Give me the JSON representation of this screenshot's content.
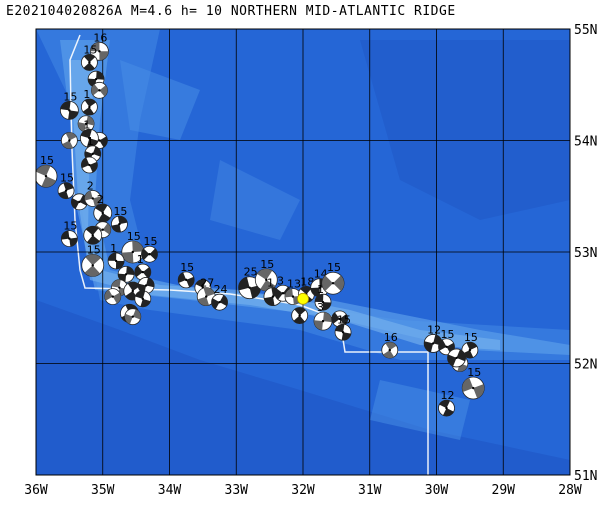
{
  "title": "E202104020826A M=4.6 h= 10 NORTHERN MID-ATLANTIC RIDGE",
  "axes": {
    "x_ticks": [
      "36W",
      "35W",
      "34W",
      "33W",
      "32W",
      "31W",
      "30W",
      "29W",
      "28W"
    ],
    "y_ticks": [
      "55N",
      "54N",
      "53N",
      "52N",
      "51N"
    ],
    "lon_range": [
      -36,
      -28
    ],
    "lat_range": [
      51,
      55
    ]
  },
  "colors": {
    "ocean": "#2566d6",
    "deep": "#1f55c4",
    "ridge": "#4a8fe6",
    "shallow": "#78b4ee",
    "grid": "#000000",
    "plate_boundary": "#ffffff",
    "event_marker": "#ffff00"
  },
  "event": {
    "lon": -32.0,
    "lat": 52.58
  },
  "mechanisms": [
    {
      "lon": -35.05,
      "lat": 54.8,
      "label": "16"
    },
    {
      "lon": -35.2,
      "lat": 54.7,
      "label": "15"
    },
    {
      "lon": -35.1,
      "lat": 54.55,
      "label": ""
    },
    {
      "lon": -35.05,
      "lat": 54.45,
      "label": ""
    },
    {
      "lon": -35.5,
      "lat": 54.27,
      "label": "15"
    },
    {
      "lon": -35.2,
      "lat": 54.3,
      "label": "1"
    },
    {
      "lon": -35.25,
      "lat": 54.15,
      "label": ""
    },
    {
      "lon": -35.05,
      "lat": 54.0,
      "label": ""
    },
    {
      "lon": -35.2,
      "lat": 54.02,
      "label": "1"
    },
    {
      "lon": -35.5,
      "lat": 54.0,
      "label": ""
    },
    {
      "lon": -35.15,
      "lat": 53.88,
      "label": "1"
    },
    {
      "lon": -35.2,
      "lat": 53.78,
      "label": ""
    },
    {
      "lon": -35.85,
      "lat": 53.68,
      "label": "15"
    },
    {
      "lon": -35.55,
      "lat": 53.55,
      "label": "15"
    },
    {
      "lon": -35.35,
      "lat": 53.45,
      "label": ""
    },
    {
      "lon": -35.15,
      "lat": 53.48,
      "label": "2"
    },
    {
      "lon": -35.0,
      "lat": 53.35,
      "label": "2"
    },
    {
      "lon": -34.75,
      "lat": 53.25,
      "label": "15"
    },
    {
      "lon": -35.0,
      "lat": 53.2,
      "label": ""
    },
    {
      "lon": -35.5,
      "lat": 53.12,
      "label": "15"
    },
    {
      "lon": -35.15,
      "lat": 53.15,
      "label": ""
    },
    {
      "lon": -34.55,
      "lat": 53.0,
      "label": "15"
    },
    {
      "lon": -34.3,
      "lat": 52.98,
      "label": "15"
    },
    {
      "lon": -34.8,
      "lat": 52.92,
      "label": "1"
    },
    {
      "lon": -35.15,
      "lat": 52.88,
      "label": "15"
    },
    {
      "lon": -34.65,
      "lat": 52.8,
      "label": ""
    },
    {
      "lon": -34.4,
      "lat": 52.82,
      "label": "1"
    },
    {
      "lon": -34.75,
      "lat": 52.68,
      "label": ""
    },
    {
      "lon": -34.55,
      "lat": 52.65,
      "label": ""
    },
    {
      "lon": -34.35,
      "lat": 52.7,
      "label": ""
    },
    {
      "lon": -34.85,
      "lat": 52.6,
      "label": ""
    },
    {
      "lon": -34.4,
      "lat": 52.58,
      "label": ""
    },
    {
      "lon": -34.6,
      "lat": 52.45,
      "label": ""
    },
    {
      "lon": -34.55,
      "lat": 52.42,
      "label": ""
    },
    {
      "lon": -33.75,
      "lat": 52.75,
      "label": "15"
    },
    {
      "lon": -33.5,
      "lat": 52.68,
      "label": ""
    },
    {
      "lon": -33.45,
      "lat": 52.6,
      "label": "27"
    },
    {
      "lon": -33.25,
      "lat": 52.55,
      "label": "24"
    },
    {
      "lon": -32.8,
      "lat": 52.68,
      "label": "25"
    },
    {
      "lon": -32.55,
      "lat": 52.75,
      "label": "15"
    },
    {
      "lon": -32.45,
      "lat": 52.6,
      "label": "1"
    },
    {
      "lon": -32.3,
      "lat": 52.63,
      "label": "3"
    },
    {
      "lon": -32.15,
      "lat": 52.6,
      "label": "13"
    },
    {
      "lon": -31.95,
      "lat": 52.62,
      "label": "18"
    },
    {
      "lon": -31.75,
      "lat": 52.68,
      "label": "14"
    },
    {
      "lon": -31.55,
      "lat": 52.72,
      "label": "15"
    },
    {
      "lon": -31.7,
      "lat": 52.55,
      "label": "1"
    },
    {
      "lon": -32.05,
      "lat": 52.43,
      "label": ""
    },
    {
      "lon": -31.7,
      "lat": 52.38,
      "label": "3"
    },
    {
      "lon": -31.45,
      "lat": 52.4,
      "label": ""
    },
    {
      "lon": -31.4,
      "lat": 52.28,
      "label": "15"
    },
    {
      "lon": -30.7,
      "lat": 52.12,
      "label": "16"
    },
    {
      "lon": -30.05,
      "lat": 52.18,
      "label": "12"
    },
    {
      "lon": -29.85,
      "lat": 52.15,
      "label": "15"
    },
    {
      "lon": -29.65,
      "lat": 52.0,
      "label": ""
    },
    {
      "lon": -29.5,
      "lat": 52.12,
      "label": "15"
    },
    {
      "lon": -29.7,
      "lat": 52.05,
      "label": ""
    },
    {
      "lon": -29.45,
      "lat": 51.78,
      "label": "15"
    },
    {
      "lon": -29.85,
      "lat": 51.6,
      "label": "12"
    }
  ]
}
